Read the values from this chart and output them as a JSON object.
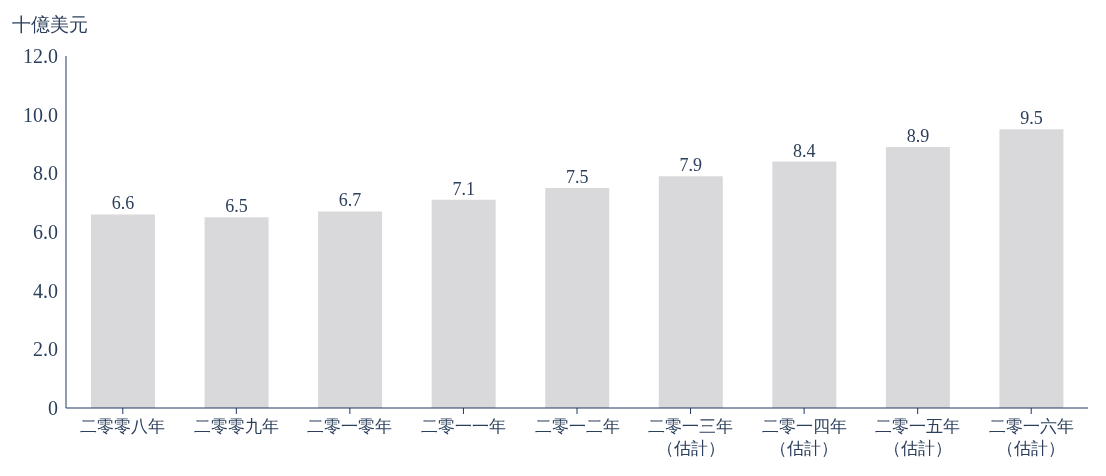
{
  "chart_data": {
    "type": "bar",
    "ylabel": "十億美元",
    "categories": [
      "二零零八年",
      "二零零九年",
      "二零一零年",
      "二零一一年",
      "二零一二年",
      "二零一三年（估計）",
      "二零一四年（估計）",
      "二零一五年（估計）",
      "二零一六年（估計）"
    ],
    "values": [
      6.6,
      6.5,
      6.7,
      7.1,
      7.5,
      7.9,
      8.4,
      8.9,
      9.5
    ],
    "color": "#d9d9db",
    "ylim": [
      0,
      12
    ],
    "yticks": [
      0,
      {
        "value": 2,
        "label": "2.0"
      },
      {
        "value": 4,
        "label": "4.0"
      },
      {
        "value": 6,
        "label": "6.0"
      },
      {
        "value": 8,
        "label": "8.0"
      },
      {
        "value": 10,
        "label": "10.0"
      },
      {
        "value": 12,
        "label": "12.0"
      }
    ],
    "data_labels": true,
    "grid": false
  }
}
